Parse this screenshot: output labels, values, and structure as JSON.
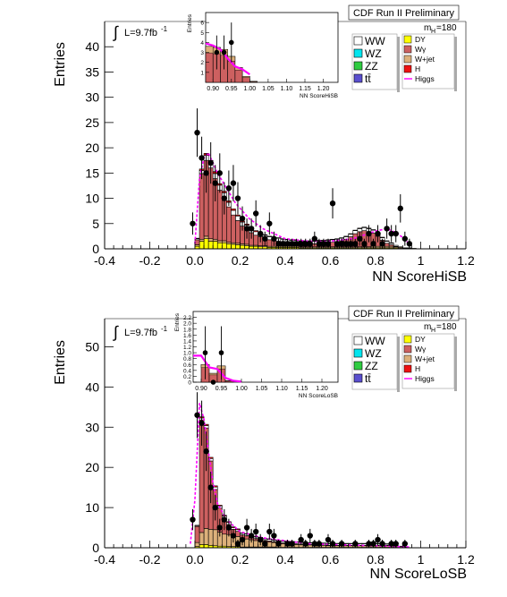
{
  "colors": {
    "WW": "#ffffff",
    "WZ": "#00e5ee",
    "ZZ": "#2ecc40",
    "ttbar": "#5a4fcf",
    "DY": "#ffff00",
    "Wgamma": "#cd6060",
    "Wjet": "#dcb07a",
    "H": "#ee1111",
    "Higgs": "#ff00ff",
    "data": "#000000",
    "frame": "#000000"
  },
  "chart_data": [
    {
      "type": "bar",
      "panel": "top",
      "header": "CDF Run II Preliminary",
      "lumi_label": "L=9.7fb",
      "lumi_sup": "-1",
      "integral_symbol": "∫",
      "ylabel": "Entries",
      "xlabel": "NN ScoreHiSB",
      "mass_label": "m",
      "mass_sub": "H",
      "mass_value": "=180",
      "xlim": [
        -0.4,
        1.2
      ],
      "ylim": [
        0,
        45
      ],
      "xticks": [
        "-0.4",
        "-0.2",
        "0.0",
        "0.2",
        "0.4",
        "0.6",
        "0.8",
        "1",
        "1.2"
      ],
      "xtick_values": [
        -0.4,
        -0.2,
        0.0,
        0.2,
        0.4,
        0.6,
        0.8,
        1.0,
        1.2
      ],
      "yticks": [
        "0",
        "5",
        "10",
        "15",
        "20",
        "25",
        "30",
        "35",
        "40"
      ],
      "ytick_values": [
        0,
        5,
        10,
        15,
        20,
        25,
        30,
        35,
        40
      ],
      "legend_left": [
        {
          "key": "WW",
          "label": "WW"
        },
        {
          "key": "WZ",
          "label": "WZ"
        },
        {
          "key": "ZZ",
          "label": "ZZ"
        },
        {
          "key": "ttbar",
          "label": "tt̄"
        }
      ],
      "legend_right": [
        {
          "key": "DY",
          "label": "DY",
          "kind": "box"
        },
        {
          "key": "Wgamma",
          "label": "Wγ",
          "kind": "box"
        },
        {
          "key": "Wjet",
          "label": "W+jet",
          "kind": "box"
        },
        {
          "key": "H",
          "label": "H",
          "kind": "box"
        },
        {
          "key": "Higgs",
          "label": "Higgs",
          "kind": "line"
        }
      ],
      "bin_edges_start": -0.02,
      "bin_width": 0.02,
      "stack": {
        "DY": [
          0,
          0.5,
          1.5,
          2,
          1.5,
          1.5,
          1.2,
          1.2,
          1,
          0.9,
          0.8,
          0.7,
          0.6,
          0.5,
          0.5,
          0.4,
          0.4,
          0.3,
          0.3,
          0.3,
          0.3,
          0.3,
          0.3,
          0.3,
          0.2,
          0.2,
          0.2,
          0.2,
          0.2,
          0.2,
          0.2,
          0.2,
          0.2,
          0.2,
          0.2,
          0.2,
          0.2,
          0.2,
          0.2,
          0.2,
          0.2,
          0.2,
          0.2,
          0.2,
          0.2,
          0.2,
          0.1,
          0.1,
          0.1,
          0.1,
          0
        ],
        "Wjet": [
          0,
          0.3,
          0.4,
          0.5,
          0.5,
          0.4,
          0.4,
          0.4,
          0.3,
          0.3,
          0.3,
          0.3,
          0.3,
          0.2,
          0.2,
          0.2,
          0.2,
          0.2,
          0.2,
          0.2,
          0.2,
          0.2,
          0.2,
          0.2,
          0.2,
          0.2,
          0.2,
          0.2,
          0.2,
          0.2,
          0.2,
          0.2,
          0.2,
          0.2,
          0.2,
          0.2,
          0.2,
          0.2,
          0.2,
          0.2,
          0.3,
          0.3,
          0.3,
          0.3,
          0.3,
          0.2,
          0.2,
          0.1,
          0.1,
          0,
          0
        ],
        "Wgamma": [
          0,
          1,
          13,
          15,
          14,
          12,
          10,
          8.5,
          7,
          5.5,
          4.5,
          3.5,
          3,
          2.5,
          2,
          1.8,
          1.5,
          1.3,
          1.1,
          1,
          0.9,
          0.8,
          0.7,
          0.7,
          0.6,
          0.6,
          0.6,
          0.6,
          0.7,
          0.7,
          0.8,
          0.9,
          1,
          1.2,
          1.5,
          2,
          2.6,
          3,
          3.2,
          3,
          2.6,
          2,
          1.2,
          0.6,
          0.3,
          0.1,
          0,
          0,
          0,
          0,
          0
        ],
        "WW": [
          0,
          0.2,
          0.6,
          1,
          1.1,
          1,
          1,
          1,
          0.9,
          0.9,
          0.9,
          0.8,
          0.8,
          0.8,
          0.7,
          0.7,
          0.6,
          0.6,
          0.6,
          0.6,
          0.5,
          0.5,
          0.5,
          0.5,
          0.5,
          0.5,
          0.5,
          0.5,
          0.5,
          0.5,
          0.5,
          0.5,
          0.5,
          0.5,
          0.5,
          0.5,
          0.6,
          0.6,
          0.6,
          0.6,
          0.6,
          0.5,
          0.5,
          0.4,
          0.3,
          0.2,
          0.1,
          0,
          0,
          0,
          0
        ],
        "H": [
          0,
          0.1,
          0.3,
          0.4,
          0.4,
          0.4,
          0.3,
          0.3,
          0.3,
          0.3,
          0.2,
          0.2,
          0.2,
          0.2,
          0.2,
          0.1,
          0.1,
          0.1,
          0.1,
          0.1,
          0.1,
          0.1,
          0.1,
          0.1,
          0.1,
          0.1,
          0.1,
          0.1,
          0.1,
          0.1,
          0.1,
          0.1,
          0.1,
          0.1,
          0.1,
          0.1,
          0.1,
          0.1,
          0.1,
          0.1,
          0.1,
          0.1,
          0.1,
          0.1,
          0.1,
          0,
          0,
          0,
          0,
          0,
          0
        ]
      },
      "data_x": [
        -0.01,
        0.01,
        0.03,
        0.05,
        0.07,
        0.09,
        0.11,
        0.13,
        0.15,
        0.17,
        0.19,
        0.21,
        0.23,
        0.25,
        0.27,
        0.29,
        0.31,
        0.33,
        0.35,
        0.37,
        0.39,
        0.41,
        0.43,
        0.45,
        0.47,
        0.49,
        0.51,
        0.53,
        0.55,
        0.57,
        0.59,
        0.61,
        0.63,
        0.65,
        0.67,
        0.69,
        0.71,
        0.73,
        0.75,
        0.77,
        0.79,
        0.81,
        0.83,
        0.85,
        0.87,
        0.89,
        0.91,
        0.93,
        0.95
      ],
      "data_y": [
        5,
        23,
        18,
        15,
        17,
        13,
        15,
        10,
        12,
        13,
        10,
        6,
        4,
        4,
        7,
        3,
        2,
        5,
        2,
        1,
        1,
        1,
        1,
        1,
        1,
        1,
        1,
        2,
        1,
        1,
        1,
        9,
        1,
        1,
        1,
        1,
        1,
        2,
        1,
        3,
        1,
        3,
        1,
        4,
        3,
        3,
        8,
        2,
        1
      ],
      "data_err": [
        2.2,
        4.8,
        4.2,
        3.9,
        4.1,
        3.6,
        3.9,
        3.2,
        3.5,
        3.6,
        3.2,
        2.4,
        2,
        2,
        2.6,
        1.7,
        1.4,
        2.2,
        1.4,
        1,
        1,
        1,
        1,
        1,
        1,
        1,
        1,
        1.4,
        1,
        1,
        1,
        3,
        1,
        1,
        1,
        1,
        1,
        1.4,
        1,
        1.7,
        1,
        1.7,
        1,
        2,
        1.7,
        1.7,
        2.8,
        1.4,
        1
      ],
      "higgs_x": [
        0.0,
        0.02,
        0.04,
        0.06,
        0.08,
        0.1,
        0.14,
        0.18,
        0.24,
        0.3,
        0.4,
        0.5,
        0.6,
        0.7,
        0.8,
        0.85,
        0.9,
        0.95
      ],
      "higgs_y": [
        1,
        14,
        18,
        19,
        17,
        15,
        12,
        9,
        6,
        4,
        2,
        1.5,
        1.5,
        2,
        3.5,
        4,
        3,
        1
      ],
      "inset": {
        "ylabel": "Entries",
        "xlabel": "NN ScoreHiSB",
        "xlim": [
          0.88,
          1.24
        ],
        "ylim": [
          0,
          7
        ],
        "xticks": [
          "0.90",
          "0.95",
          "1.00",
          "1.05",
          "1.10",
          "1.15",
          "1.20"
        ],
        "xtick_values": [
          0.9,
          0.95,
          1.0,
          1.05,
          1.1,
          1.15,
          1.2
        ],
        "yticks": [
          "1",
          "2",
          "3",
          "4",
          "5",
          "6"
        ],
        "ytick_values": [
          1,
          2,
          3,
          4,
          5,
          6
        ],
        "bins": [
          [
            0.88,
            0.9,
            3.6
          ],
          [
            0.9,
            0.92,
            3.5
          ],
          [
            0.92,
            0.94,
            3.3
          ],
          [
            0.94,
            0.96,
            2.6
          ],
          [
            0.96,
            0.98,
            1.5
          ],
          [
            0.98,
            1.0,
            0.6
          ],
          [
            1.0,
            1.02,
            0.1
          ]
        ],
        "data_x": [
          0.91,
          0.93,
          0.95
        ],
        "data_y": [
          3,
          3,
          4
        ],
        "data_err": [
          1.7,
          1.7,
          2.0
        ],
        "higgs_x": [
          0.88,
          0.9,
          0.92,
          0.94,
          0.96,
          0.98,
          1.0
        ],
        "higgs_y": [
          3.9,
          3.7,
          3.3,
          2.4,
          1.6,
          1.3,
          0.8
        ]
      }
    },
    {
      "type": "bar",
      "panel": "bottom",
      "header": "CDF Run II Preliminary",
      "lumi_label": "L=9.7fb",
      "lumi_sup": "-1",
      "integral_symbol": "∫",
      "ylabel": "Entries",
      "xlabel": "NN ScoreLoSB",
      "mass_label": "m",
      "mass_sub": "H",
      "mass_value": "=180",
      "xlim": [
        -0.4,
        1.2
      ],
      "ylim": [
        0,
        57
      ],
      "xticks": [
        "-0.4",
        "-0.2",
        "0.0",
        "0.2",
        "0.4",
        "0.6",
        "0.8",
        "1",
        "1.2"
      ],
      "xtick_values": [
        -0.4,
        -0.2,
        0.0,
        0.2,
        0.4,
        0.6,
        0.8,
        1.0,
        1.2
      ],
      "yticks": [
        "0",
        "10",
        "20",
        "30",
        "40",
        "50"
      ],
      "ytick_values": [
        0,
        10,
        20,
        30,
        40,
        50
      ],
      "legend_left": [
        {
          "key": "WW",
          "label": "WW"
        },
        {
          "key": "WZ",
          "label": "WZ"
        },
        {
          "key": "ZZ",
          "label": "ZZ"
        },
        {
          "key": "ttbar",
          "label": "tt̄"
        }
      ],
      "legend_right": [
        {
          "key": "DY",
          "label": "DY",
          "kind": "box"
        },
        {
          "key": "Wgamma",
          "label": "Wγ",
          "kind": "box"
        },
        {
          "key": "Wjet",
          "label": "W+jet",
          "kind": "box"
        },
        {
          "key": "H",
          "label": "H",
          "kind": "box"
        },
        {
          "key": "Higgs",
          "label": "Higgs",
          "kind": "line"
        }
      ],
      "bin_edges_start": -0.02,
      "bin_width": 0.02,
      "stack": {
        "DY": [
          0,
          0.3,
          0.8,
          0.8,
          0.6,
          0.5,
          0.4,
          0.4,
          0.3,
          0.3,
          0.3,
          0.2,
          0.2,
          0.2,
          0.2,
          0.2,
          0.2,
          0.2,
          0.2,
          0.1,
          0.1,
          0.1,
          0.1,
          0.1,
          0.1,
          0.1,
          0.1,
          0.1,
          0.1,
          0.1,
          0.1,
          0.1,
          0.1,
          0.1,
          0.1,
          0.1,
          0.1,
          0.1,
          0.1,
          0.1,
          0.1,
          0.1,
          0.1,
          0.1,
          0.1,
          0.1,
          0.1,
          0.1,
          0,
          0,
          0
        ],
        "Wjet": [
          0,
          1,
          3,
          4,
          4,
          4,
          3.5,
          3,
          3,
          2.5,
          2.5,
          2,
          2,
          1.8,
          1.6,
          1.5,
          1.3,
          1.2,
          1.1,
          1,
          0.9,
          0.8,
          0.8,
          0.7,
          0.7,
          0.6,
          0.6,
          0.5,
          0.5,
          0.5,
          0.4,
          0.4,
          0.4,
          0.4,
          0.4,
          0.4,
          0.4,
          0.4,
          0.4,
          0.4,
          0.4,
          0.4,
          0.4,
          0.4,
          0.3,
          0.3,
          0.2,
          0.1,
          0,
          0,
          0
        ],
        "Wgamma": [
          0,
          4,
          28,
          25,
          17,
          10,
          6,
          4,
          2.5,
          1.8,
          1.3,
          1,
          0.8,
          0.6,
          0.5,
          0.4,
          0.3,
          0.3,
          0.2,
          0.2,
          0.2,
          0.2,
          0.2,
          0.2,
          0.1,
          0.1,
          0.1,
          0.1,
          0.1,
          0.1,
          0.1,
          0.1,
          0.1,
          0.1,
          0.1,
          0.1,
          0.1,
          0.1,
          0.1,
          0.1,
          0.1,
          0.1,
          0.1,
          0.1,
          0.1,
          0,
          0,
          0,
          0,
          0,
          0
        ],
        "WW": [
          0,
          0.2,
          0.5,
          0.6,
          0.6,
          0.6,
          0.5,
          0.5,
          0.5,
          0.4,
          0.4,
          0.4,
          0.4,
          0.4,
          0.4,
          0.4,
          0.4,
          0.4,
          0.4,
          0.4,
          0.4,
          0.4,
          0.4,
          0.4,
          0.4,
          0.4,
          0.4,
          0.4,
          0.4,
          0.4,
          0.4,
          0.4,
          0.4,
          0.4,
          0.4,
          0.4,
          0.4,
          0.4,
          0.4,
          0.4,
          0.4,
          0.4,
          0.4,
          0.3,
          0.3,
          0.2,
          0.1,
          0,
          0,
          0,
          0
        ],
        "H": [
          0,
          0.1,
          0.3,
          0.3,
          0.3,
          0.3,
          0.2,
          0.2,
          0.2,
          0.2,
          0.2,
          0.1,
          0.1,
          0.1,
          0.1,
          0.1,
          0.1,
          0.1,
          0.1,
          0.1,
          0.1,
          0.1,
          0.1,
          0.1,
          0.1,
          0.1,
          0.1,
          0.1,
          0.1,
          0.1,
          0.1,
          0.1,
          0.1,
          0.1,
          0.1,
          0.1,
          0.1,
          0.1,
          0.1,
          0.1,
          0.1,
          0.1,
          0.1,
          0.1,
          0.1,
          0,
          0,
          0,
          0,
          0,
          0
        ]
      },
      "data_x": [
        -0.01,
        0.01,
        0.03,
        0.05,
        0.07,
        0.09,
        0.11,
        0.13,
        0.15,
        0.17,
        0.19,
        0.21,
        0.23,
        0.25,
        0.27,
        0.29,
        0.31,
        0.33,
        0.35,
        0.37,
        0.41,
        0.43,
        0.47,
        0.49,
        0.51,
        0.53,
        0.55,
        0.59,
        0.61,
        0.65,
        0.71,
        0.77,
        0.79,
        0.81,
        0.83,
        0.87,
        0.89,
        0.93
      ],
      "data_y": [
        7,
        33,
        31,
        24,
        15,
        10,
        5,
        7,
        5,
        3,
        1,
        2,
        5,
        3,
        4,
        2,
        1,
        4,
        3,
        1,
        1,
        1,
        2,
        1,
        3,
        1,
        1,
        2,
        1,
        1,
        1,
        1,
        1,
        2,
        1,
        1,
        1,
        1
      ],
      "data_err": [
        2.6,
        5.7,
        5.6,
        4.9,
        3.9,
        3.2,
        2.2,
        2.6,
        2.2,
        1.7,
        1,
        1.4,
        2.2,
        1.7,
        2,
        1.4,
        1,
        2,
        1.7,
        1,
        1,
        1,
        1.4,
        1,
        1.7,
        1,
        1,
        1.4,
        1,
        1,
        1,
        1,
        1,
        1.4,
        1,
        1,
        1,
        1
      ],
      "higgs_x": [
        -0.02,
        0.0,
        0.02,
        0.04,
        0.06,
        0.08,
        0.1,
        0.14,
        0.2,
        0.3,
        0.5,
        0.8,
        0.95
      ],
      "higgs_y": [
        1,
        12,
        36,
        32,
        24,
        16,
        11,
        7,
        4,
        2.5,
        1,
        0.5,
        0.2
      ],
      "inset": {
        "ylabel": "Entries",
        "xlabel": "NN ScoreLoSB",
        "xlim": [
          0.88,
          1.24
        ],
        "ylim": [
          0,
          2.4
        ],
        "xticks": [
          "0.90",
          "0.95",
          "1.00",
          "1.05",
          "1.10",
          "1.15",
          "1.20"
        ],
        "xtick_values": [
          0.9,
          0.95,
          1.0,
          1.05,
          1.1,
          1.15,
          1.2
        ],
        "yticks": [
          "0",
          "0.2",
          "0.4",
          "0.6",
          "0.8",
          "1.0",
          "1.2",
          "1.4",
          "1.6",
          "1.8",
          "2.0",
          "2.2"
        ],
        "ytick_values": [
          0,
          0.2,
          0.4,
          0.6,
          0.8,
          1.0,
          1.2,
          1.4,
          1.6,
          1.8,
          2.0,
          2.2
        ],
        "bins": [
          [
            0.88,
            0.9,
            0.0
          ],
          [
            0.9,
            0.92,
            0.6
          ],
          [
            0.92,
            0.94,
            0.3
          ],
          [
            0.94,
            0.96,
            0.55
          ],
          [
            0.96,
            0.98,
            0.05
          ]
        ],
        "data_x": [
          0.91,
          0.93,
          0.95
        ],
        "data_y": [
          1,
          0,
          1
        ],
        "data_err": [
          0.9,
          0,
          0.9
        ],
        "higgs_x": [
          0.88,
          0.9,
          0.92,
          0.94,
          0.96,
          0.98,
          1.0
        ],
        "higgs_y": [
          0.9,
          0.9,
          0.5,
          0.45,
          0.15,
          0.05,
          0.02
        ]
      }
    }
  ]
}
